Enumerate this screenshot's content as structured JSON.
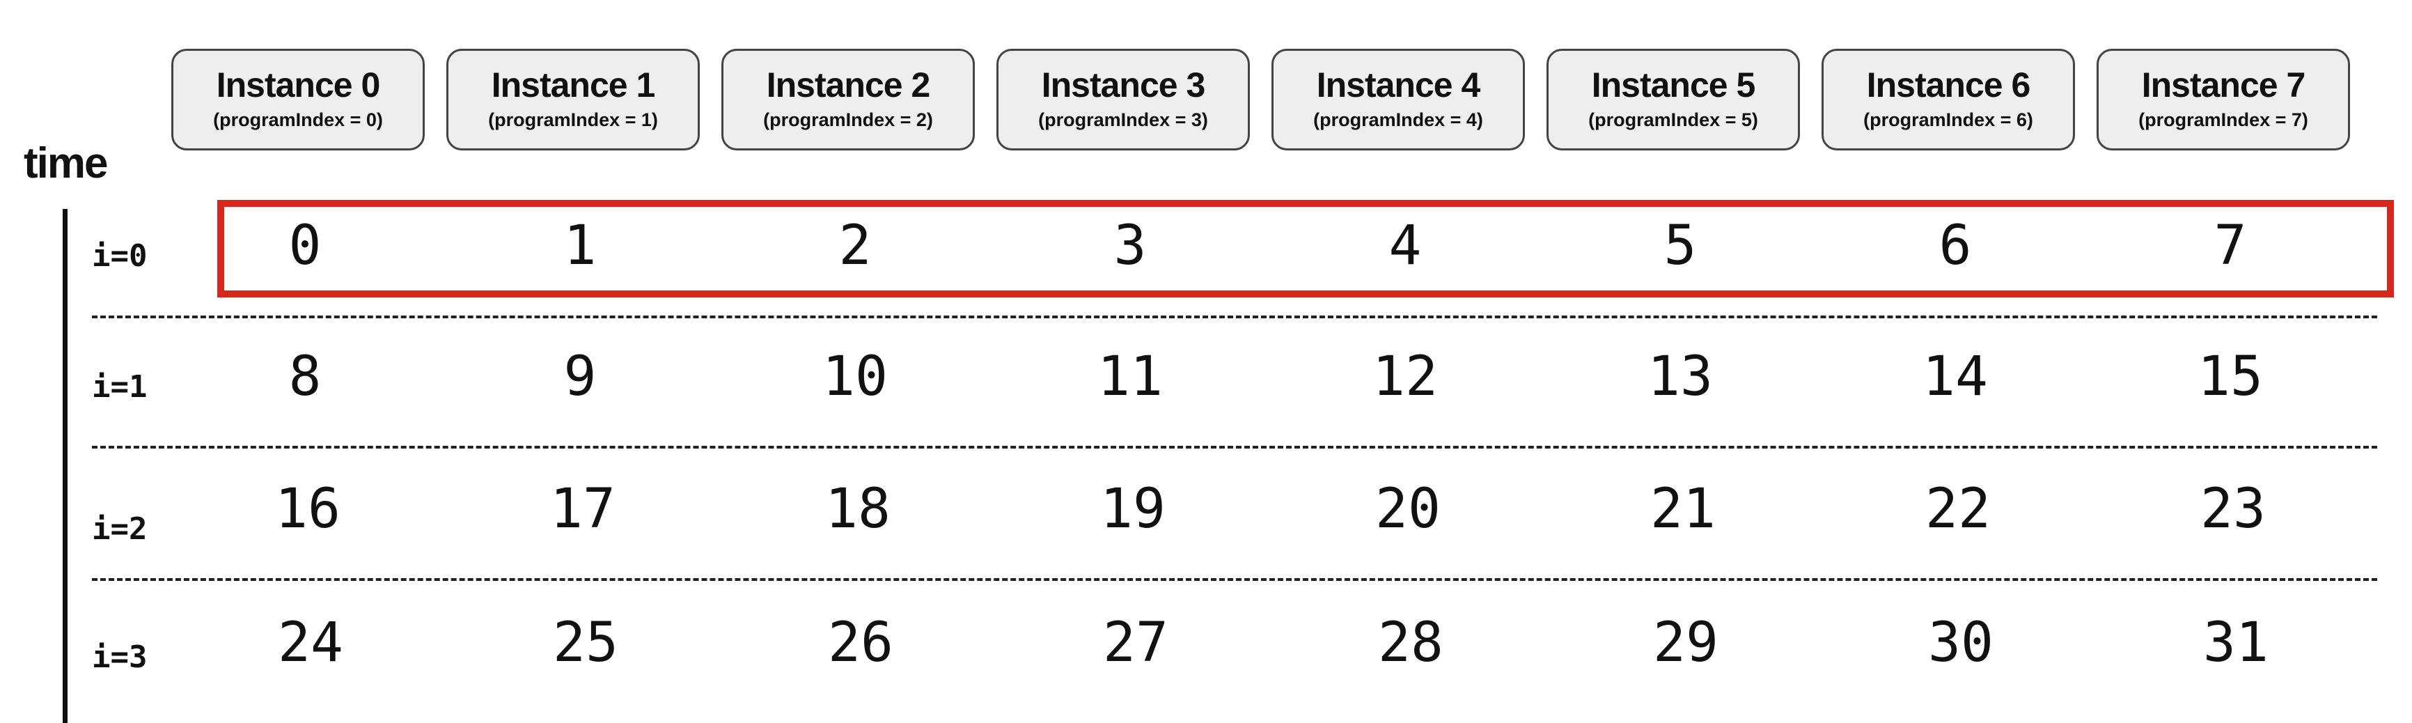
{
  "time_label": "time",
  "instances": [
    {
      "title": "Instance 0",
      "subtitle": "(programIndex = 0)"
    },
    {
      "title": "Instance 1",
      "subtitle": "(programIndex = 1)"
    },
    {
      "title": "Instance 2",
      "subtitle": "(programIndex = 2)"
    },
    {
      "title": "Instance 3",
      "subtitle": "(programIndex = 3)"
    },
    {
      "title": "Instance 4",
      "subtitle": "(programIndex = 4)"
    },
    {
      "title": "Instance 5",
      "subtitle": "(programIndex = 5)"
    },
    {
      "title": "Instance 6",
      "subtitle": "(programIndex = 6)"
    },
    {
      "title": "Instance 7",
      "subtitle": "(programIndex = 7)"
    }
  ],
  "rows": [
    {
      "label": "i=0",
      "values": [
        "0",
        "1",
        "2",
        "3",
        "4",
        "5",
        "6",
        "7"
      ]
    },
    {
      "label": "i=1",
      "values": [
        "8",
        "9",
        "10",
        "11",
        "12",
        "13",
        "14",
        "15"
      ]
    },
    {
      "label": "i=2",
      "values": [
        "16",
        "17",
        "18",
        "19",
        "20",
        "21",
        "22",
        "23"
      ]
    },
    {
      "label": "i=3",
      "values": [
        "24",
        "25",
        "26",
        "27",
        "28",
        "29",
        "30",
        "31"
      ]
    }
  ],
  "highlight": {
    "row": "i=0",
    "color": "#d7261b"
  }
}
